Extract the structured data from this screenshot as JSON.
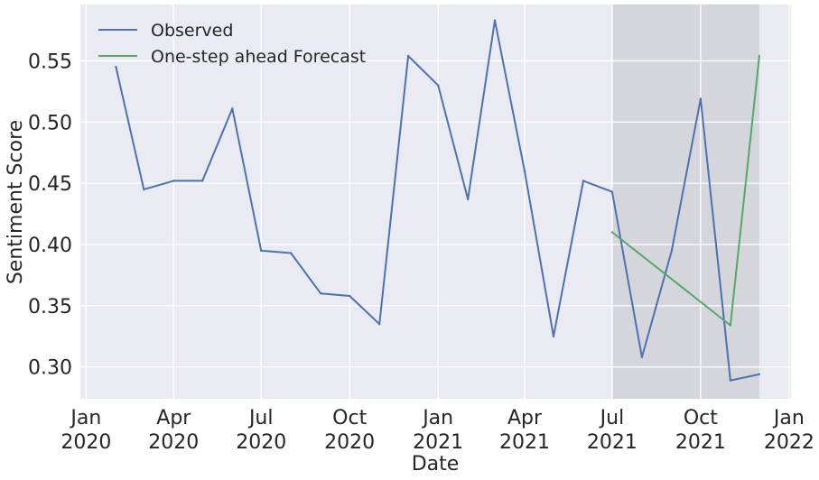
{
  "chart_data": {
    "type": "line",
    "xlabel": "Date",
    "ylabel": "Sentiment Score",
    "x_range": [
      "2019-12-26",
      "2022-01-03"
    ],
    "ylim": [
      0.274,
      0.596
    ],
    "grid": true,
    "legend_placement": "top-left",
    "x_ticks": [
      {
        "date": "2020-01-01",
        "line1": "Jan",
        "line2": "2020"
      },
      {
        "date": "2020-04-01",
        "line1": "Apr",
        "line2": "2020"
      },
      {
        "date": "2020-07-01",
        "line1": "Jul",
        "line2": "2020"
      },
      {
        "date": "2020-10-01",
        "line1": "Oct",
        "line2": "2020"
      },
      {
        "date": "2021-01-01",
        "line1": "Jan",
        "line2": "2021"
      },
      {
        "date": "2021-04-01",
        "line1": "Apr",
        "line2": "2021"
      },
      {
        "date": "2021-07-01",
        "line1": "Jul",
        "line2": "2021"
      },
      {
        "date": "2021-10-01",
        "line1": "Oct",
        "line2": "2021"
      },
      {
        "date": "2022-01-01",
        "line1": "Jan",
        "line2": "2022"
      }
    ],
    "y_ticks": [
      {
        "value": 0.3,
        "label": "0.30"
      },
      {
        "value": 0.35,
        "label": "0.35"
      },
      {
        "value": 0.4,
        "label": "0.40"
      },
      {
        "value": 0.45,
        "label": "0.45"
      },
      {
        "value": 0.5,
        "label": "0.50"
      },
      {
        "value": 0.55,
        "label": "0.55"
      }
    ],
    "shaded_region": {
      "start": "2021-07-01",
      "end": "2021-12-01",
      "color": "#d5d5dc"
    },
    "series": [
      {
        "name": "Observed",
        "color": "#4c72b0",
        "points": [
          {
            "x": "2020-02-01",
            "y": 0.545
          },
          {
            "x": "2020-03-01",
            "y": 0.445
          },
          {
            "x": "2020-04-01",
            "y": 0.452
          },
          {
            "x": "2020-05-01",
            "y": 0.452
          },
          {
            "x": "2020-06-01",
            "y": 0.511
          },
          {
            "x": "2020-07-01",
            "y": 0.395
          },
          {
            "x": "2020-08-01",
            "y": 0.393
          },
          {
            "x": "2020-09-01",
            "y": 0.36
          },
          {
            "x": "2020-10-01",
            "y": 0.358
          },
          {
            "x": "2020-11-01",
            "y": 0.335
          },
          {
            "x": "2020-12-01",
            "y": 0.554
          },
          {
            "x": "2021-01-01",
            "y": 0.53
          },
          {
            "x": "2021-02-01",
            "y": 0.437
          },
          {
            "x": "2021-03-01",
            "y": 0.583
          },
          {
            "x": "2021-04-01",
            "y": 0.46
          },
          {
            "x": "2021-05-01",
            "y": 0.325
          },
          {
            "x": "2021-06-01",
            "y": 0.452
          },
          {
            "x": "2021-07-01",
            "y": 0.443
          },
          {
            "x": "2021-08-01",
            "y": 0.308
          },
          {
            "x": "2021-09-01",
            "y": 0.395
          },
          {
            "x": "2021-10-01",
            "y": 0.519
          },
          {
            "x": "2021-11-01",
            "y": 0.289
          },
          {
            "x": "2021-12-01",
            "y": 0.294
          }
        ]
      },
      {
        "name": "One-step ahead Forecast",
        "color": "#55a868",
        "points": [
          {
            "x": "2021-07-01",
            "y": 0.41
          },
          {
            "x": "2021-11-01",
            "y": 0.334
          },
          {
            "x": "2021-12-01",
            "y": 0.554
          }
        ]
      }
    ]
  }
}
